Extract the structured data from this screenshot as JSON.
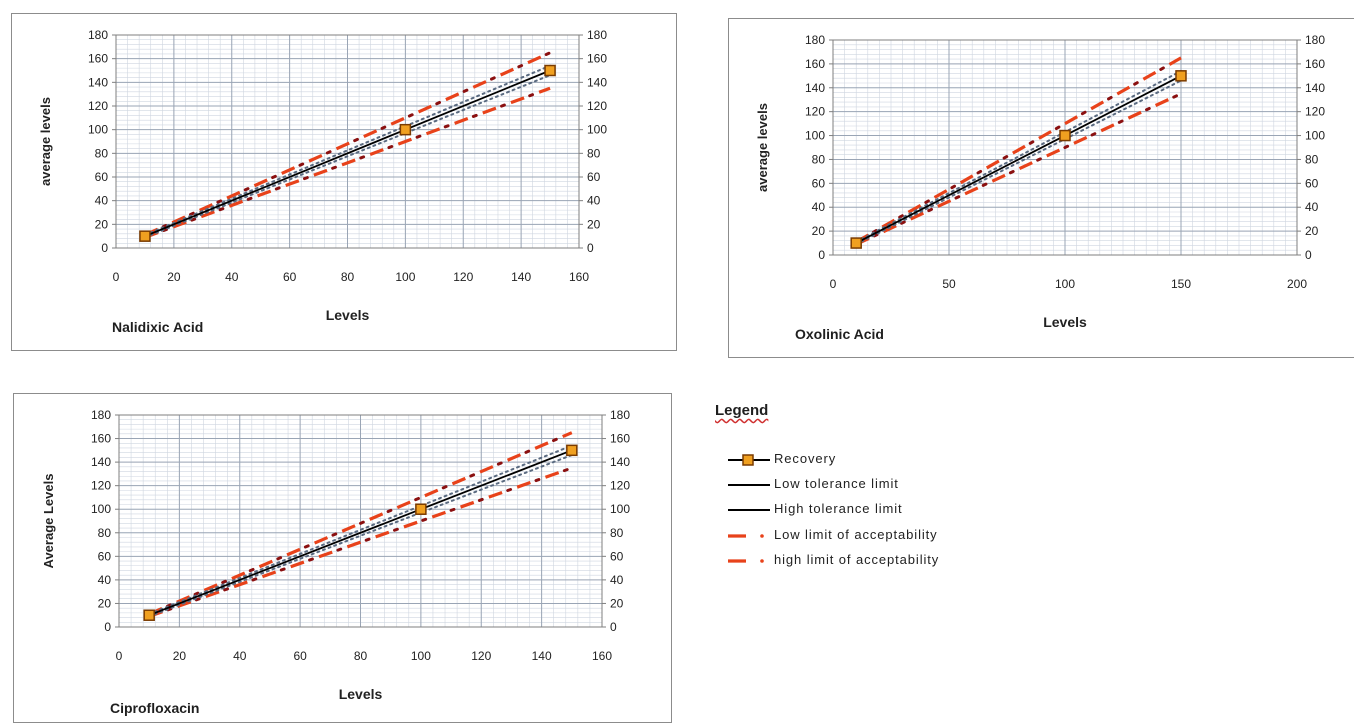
{
  "colors": {
    "recovery_line": "#000000",
    "recovery_marker_fill": "#f0a020",
    "recovery_marker_edge": "#7a3b00",
    "tolerance": "#5a6a80",
    "acceptability_dash": "#e8421a",
    "acceptability_dot": "#8b1010",
    "grid": "#9aa5b5",
    "axis": "#7f7f7f"
  },
  "legend": {
    "title": "Legend",
    "items": [
      {
        "label": "Recovery",
        "style": "recovery"
      },
      {
        "label": "Low tolerance limit",
        "style": "solid"
      },
      {
        "label": "High tolerance limit",
        "style": "solid"
      },
      {
        "label": "Low limit of acceptability",
        "style": "dash-dot"
      },
      {
        "label": "high limit of acceptability",
        "style": "dash-dot"
      }
    ]
  },
  "chart_data": [
    {
      "type": "line",
      "title": "",
      "label": "Nalidixic Acid",
      "xlabel": "Levels",
      "ylabel": "average levels",
      "xlim": [
        0,
        160
      ],
      "ylim": [
        0,
        180
      ],
      "xticks": [
        0,
        20,
        40,
        60,
        80,
        100,
        120,
        140,
        160
      ],
      "yticks": [
        0,
        20,
        40,
        60,
        80,
        100,
        120,
        140,
        160,
        180
      ],
      "secondary_yticks": [
        0,
        20,
        40,
        60,
        80,
        100,
        120,
        140,
        160,
        180
      ],
      "grid": true,
      "series": [
        {
          "name": "Recovery",
          "x": [
            10,
            100,
            150
          ],
          "y": [
            10,
            100,
            150
          ]
        },
        {
          "name": "Low tolerance limit",
          "x": [
            10,
            150
          ],
          "y": [
            9,
            146
          ]
        },
        {
          "name": "High tolerance limit",
          "x": [
            10,
            150
          ],
          "y": [
            11,
            154
          ]
        },
        {
          "name": "Low limit of acceptability",
          "x": [
            10,
            100,
            150
          ],
          "y": [
            9,
            90,
            135
          ]
        },
        {
          "name": "high limit of acceptability",
          "x": [
            10,
            100,
            150
          ],
          "y": [
            11,
            110,
            165
          ]
        }
      ]
    },
    {
      "type": "line",
      "title": "",
      "label": "Oxolinic Acid",
      "xlabel": "Levels",
      "ylabel": "average levels",
      "xlim": [
        0,
        200
      ],
      "ylim": [
        0,
        180
      ],
      "xticks": [
        0,
        50,
        100,
        150,
        200
      ],
      "yticks": [
        0,
        20,
        40,
        60,
        80,
        100,
        120,
        140,
        160,
        180
      ],
      "secondary_yticks": [
        0,
        20,
        40,
        60,
        80,
        100,
        120,
        140,
        160,
        180
      ],
      "grid": true,
      "series": [
        {
          "name": "Recovery",
          "x": [
            10,
            100,
            150
          ],
          "y": [
            10,
            100,
            150
          ]
        },
        {
          "name": "Low tolerance limit",
          "x": [
            10,
            150
          ],
          "y": [
            9,
            146
          ]
        },
        {
          "name": "High tolerance limit",
          "x": [
            10,
            150
          ],
          "y": [
            11,
            154
          ]
        },
        {
          "name": "Low limit of acceptability",
          "x": [
            10,
            100,
            150
          ],
          "y": [
            9,
            90,
            135
          ]
        },
        {
          "name": "high limit of acceptability",
          "x": [
            10,
            100,
            150
          ],
          "y": [
            11,
            110,
            165
          ]
        }
      ]
    },
    {
      "type": "line",
      "title": "",
      "label": "Ciprofloxacin",
      "xlabel": "Levels",
      "ylabel": "Average Levels",
      "xlim": [
        0,
        160
      ],
      "ylim": [
        0,
        180
      ],
      "xticks": [
        0,
        20,
        40,
        60,
        80,
        100,
        120,
        140,
        160
      ],
      "yticks": [
        0,
        20,
        40,
        60,
        80,
        100,
        120,
        140,
        160,
        180
      ],
      "secondary_yticks": [
        0,
        20,
        40,
        60,
        80,
        100,
        120,
        140,
        160,
        180
      ],
      "grid": true,
      "series": [
        {
          "name": "Recovery",
          "x": [
            10,
            100,
            150
          ],
          "y": [
            10,
            100,
            150
          ]
        },
        {
          "name": "Low tolerance limit",
          "x": [
            10,
            150
          ],
          "y": [
            9,
            146
          ]
        },
        {
          "name": "High tolerance limit",
          "x": [
            10,
            150
          ],
          "y": [
            11,
            154
          ]
        },
        {
          "name": "Low limit of acceptability",
          "x": [
            10,
            100,
            150
          ],
          "y": [
            9,
            90,
            135
          ]
        },
        {
          "name": "high limit of acceptability",
          "x": [
            10,
            100,
            150
          ],
          "y": [
            11,
            110,
            165
          ]
        }
      ]
    }
  ]
}
